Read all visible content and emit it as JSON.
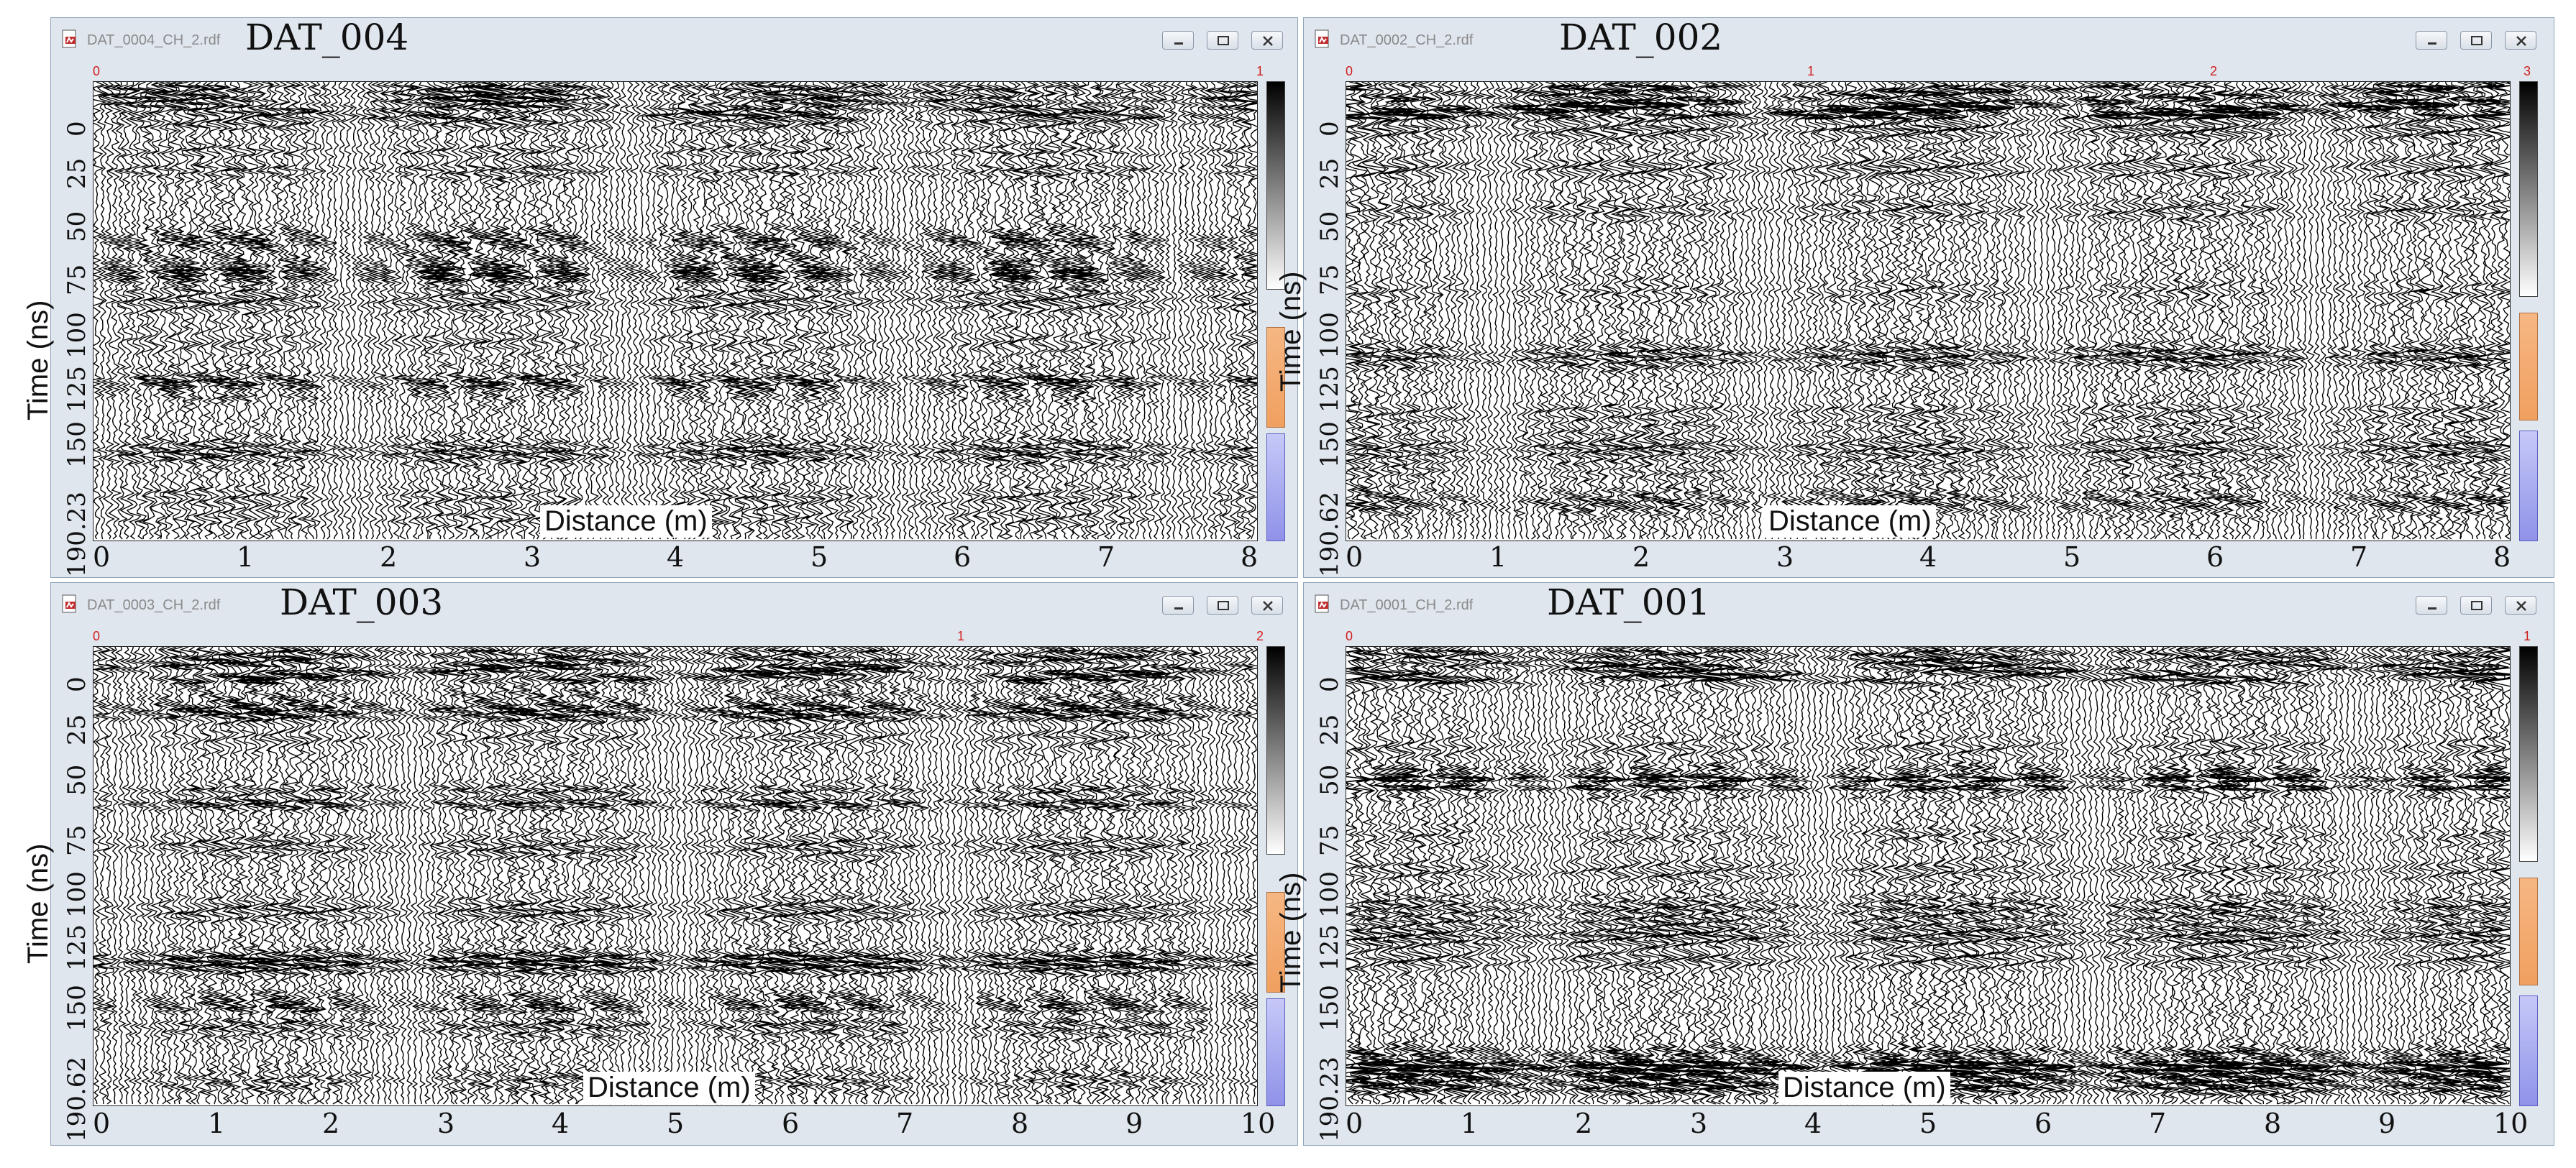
{
  "panels": [
    {
      "id": "dat004",
      "file": "DAT_0004_CH_2.rdf",
      "label": "DAT_004",
      "top_scale": [
        "0",
        "1"
      ],
      "y_title": "Time (ns)",
      "y_ticks": [
        "0",
        "25",
        "50",
        "75",
        "100",
        "125",
        "150",
        "190.23"
      ],
      "x_title": "Distance (m)",
      "x_ticks": [
        "0",
        "1",
        "2",
        "3",
        "4",
        "5",
        "6",
        "7",
        "8"
      ]
    },
    {
      "id": "dat002",
      "file": "DAT_0002_CH_2.rdf",
      "label": "DAT_002",
      "top_scale": [
        "0",
        "1",
        "2",
        "3"
      ],
      "y_title": "Time (ns)",
      "y_ticks": [
        "0",
        "25",
        "50",
        "75",
        "100",
        "125",
        "150",
        "190.62"
      ],
      "x_title": "Distance (m)",
      "x_ticks": [
        "0",
        "1",
        "2",
        "3",
        "4",
        "5",
        "6",
        "7",
        "8"
      ]
    },
    {
      "id": "dat003",
      "file": "DAT_0003_CH_2.rdf",
      "label": "DAT_003",
      "top_scale": [
        "0",
        "1",
        "2"
      ],
      "y_title": "Time (ns)",
      "y_ticks": [
        "0",
        "25",
        "50",
        "75",
        "100",
        "125",
        "150",
        "190.62"
      ],
      "x_title": "Distance (m)",
      "x_ticks": [
        "0",
        "1",
        "2",
        "3",
        "4",
        "5",
        "6",
        "7",
        "8",
        "9",
        "10"
      ]
    },
    {
      "id": "dat001",
      "file": "DAT_0001_CH_2.rdf",
      "label": "DAT_001",
      "top_scale": [
        "0",
        "1"
      ],
      "y_title": "Time (ns)",
      "y_ticks": [
        "0",
        "25",
        "50",
        "75",
        "100",
        "125",
        "150",
        "190.23"
      ],
      "x_title": "Distance (m)",
      "x_ticks": [
        "0",
        "1",
        "2",
        "3",
        "4",
        "5",
        "6",
        "7",
        "8",
        "9",
        "10"
      ]
    }
  ],
  "icons": {
    "app": "radar-file-icon",
    "minimize": "minimize-icon",
    "maximize": "maximize-icon",
    "close": "close-icon"
  },
  "colors": {
    "title_bar": "#dfe6ee",
    "top_scale": "#d02020",
    "trace": "#000000"
  }
}
